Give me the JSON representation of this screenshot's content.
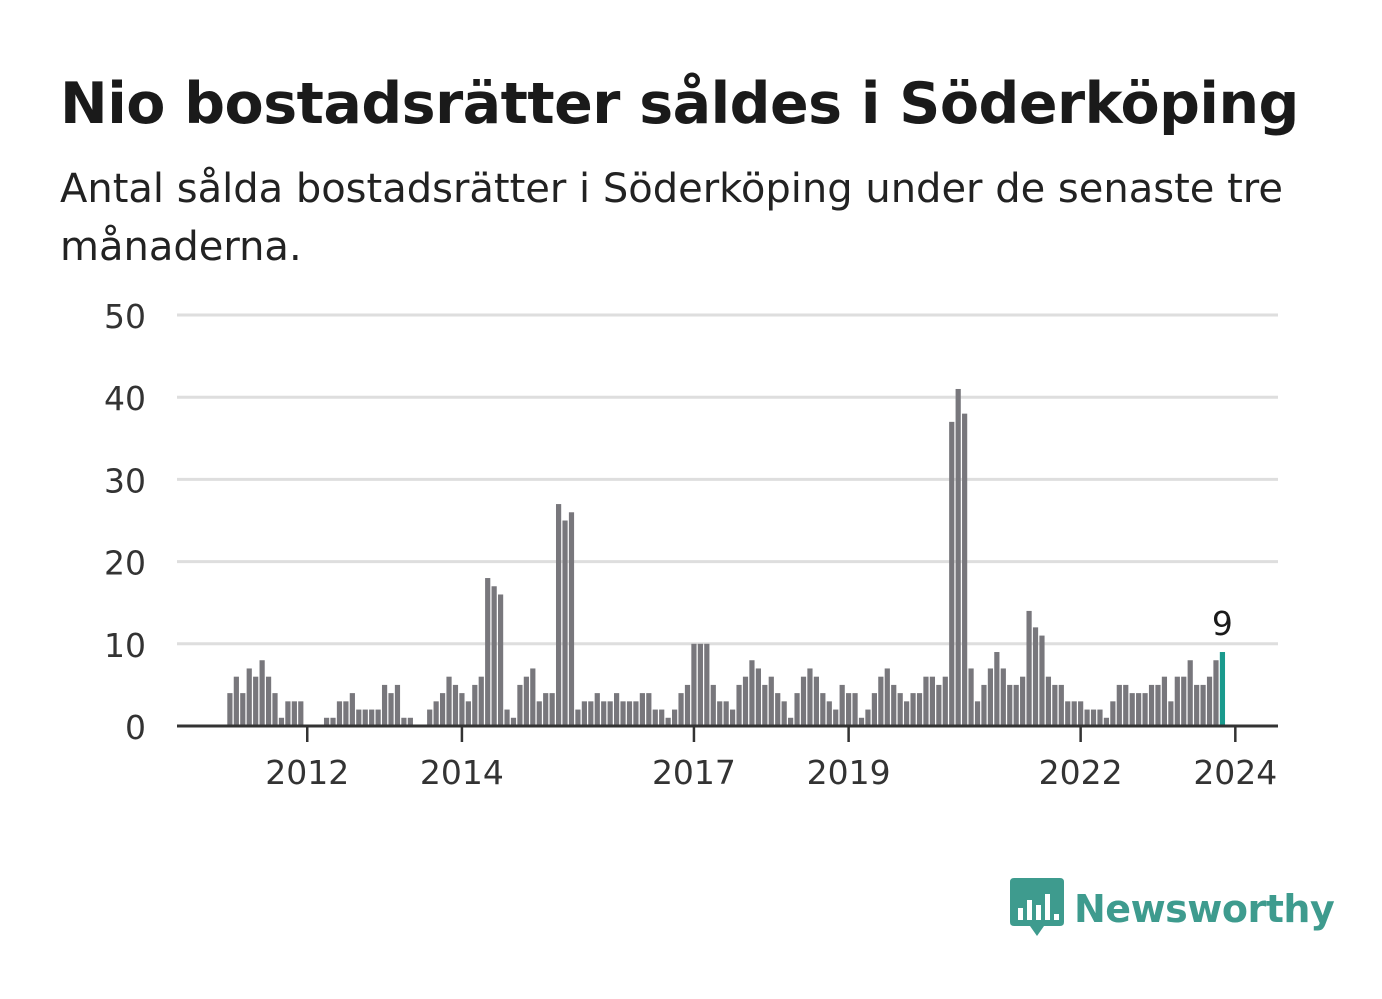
{
  "title": "Nio bostadsrätter såldes i Söderköping",
  "subtitle": "Antal sålda bostadsrätter i Söderköping under de senaste tre månaderna.",
  "brand": {
    "name": "Newsworthy",
    "color": "#3e9b8e",
    "icon": "newsworthy-logo-icon"
  },
  "colors": {
    "bar": "#78777c",
    "highlight": "#1a9a8d",
    "grid": "#dedede",
    "axis": "#333333"
  },
  "chart_data": {
    "type": "bar",
    "title": "Nio bostadsrätter såldes i Söderköping",
    "xlabel": "",
    "ylabel": "",
    "ylim": [
      0,
      50
    ],
    "yticks": [
      0,
      10,
      20,
      30,
      40,
      50
    ],
    "x_start": "2011-01",
    "xticks": [
      "2012",
      "2014",
      "2017",
      "2019",
      "2022",
      "2024"
    ],
    "grid": true,
    "values": [
      4,
      6,
      4,
      7,
      6,
      8,
      6,
      4,
      1,
      3,
      3,
      3,
      0,
      0,
      0,
      1,
      1,
      3,
      3,
      4,
      2,
      2,
      2,
      2,
      5,
      4,
      5,
      1,
      1,
      0,
      0,
      2,
      3,
      4,
      6,
      5,
      4,
      3,
      5,
      6,
      18,
      17,
      16,
      2,
      1,
      5,
      6,
      7,
      3,
      4,
      4,
      27,
      25,
      26,
      2,
      3,
      3,
      4,
      3,
      3,
      4,
      3,
      3,
      3,
      4,
      4,
      2,
      2,
      1,
      2,
      4,
      5,
      10,
      10,
      10,
      5,
      3,
      3,
      2,
      5,
      6,
      8,
      7,
      5,
      6,
      4,
      3,
      1,
      4,
      6,
      7,
      6,
      4,
      3,
      2,
      5,
      4,
      4,
      1,
      2,
      4,
      6,
      7,
      5,
      4,
      3,
      4,
      4,
      6,
      6,
      5,
      6,
      37,
      41,
      38,
      7,
      3,
      5,
      7,
      9,
      7,
      5,
      5,
      6,
      14,
      12,
      11,
      6,
      5,
      5,
      3,
      3,
      3,
      2,
      2,
      2,
      1,
      3,
      5,
      5,
      4,
      4,
      4,
      5,
      5,
      6,
      3,
      6,
      6,
      8,
      5,
      5,
      6,
      8,
      9
    ],
    "highlight": {
      "index": 154,
      "value": 9,
      "label": "9"
    }
  }
}
